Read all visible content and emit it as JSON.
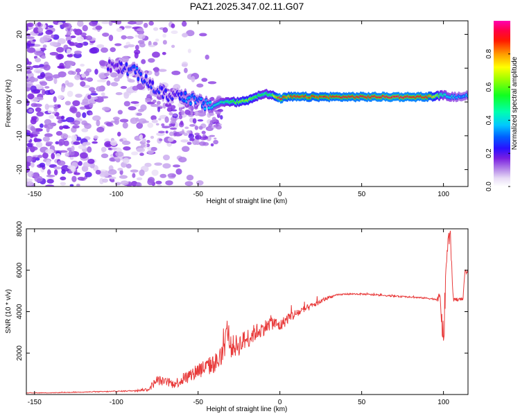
{
  "figure": {
    "title": "PAZ1.2025.347.02.11.G07"
  },
  "chart_data": [
    {
      "type": "heatmap",
      "name": "spectrogram",
      "title": "PAZ1.2025.347.02.11.G07",
      "xlabel": "Height of straight line (km)",
      "ylabel": "Frequency (Hz)",
      "xlim": [
        -155,
        115
      ],
      "ylim": [
        -25,
        24
      ],
      "x_ticks": [
        -150,
        -100,
        -50,
        0,
        50,
        100
      ],
      "x_tick_labels": [
        "-150",
        "-100",
        "-50",
        "0",
        "50",
        "100"
      ],
      "y_ticks": [
        -20,
        -10,
        0,
        10,
        20
      ],
      "y_tick_labels": [
        "-20",
        "-10",
        "0",
        "10",
        "20"
      ],
      "colorbar": {
        "label": "Normalized spectral amplitude",
        "range": [
          0,
          1
        ],
        "ticks": [
          0,
          0.2,
          0.4,
          0.6,
          0.8
        ],
        "tick_labels": [
          "0.0",
          "0.2",
          "0.4",
          "0.6",
          "0.8"
        ],
        "colormap": "white-lavender-purple-blue-cyan-green-yellow-orange-red-magenta"
      },
      "ridge": {
        "description": "dominant spectral ridge frequency vs height",
        "x": [
          -100,
          -90,
          -80,
          -75,
          -70,
          -65,
          -60,
          -55,
          -50,
          -45,
          -40,
          -35,
          -30,
          -25,
          -20,
          -15,
          -10,
          -5,
          0,
          5,
          10,
          20,
          30,
          40,
          50,
          60,
          70,
          80,
          90,
          100,
          105,
          110,
          115
        ],
        "y": [
          10.5,
          9.5,
          5.5,
          3.5,
          2.0,
          2.0,
          2.0,
          1.0,
          0.0,
          -1.0,
          -1.0,
          0.0,
          0.0,
          0.0,
          0.5,
          1.5,
          2.5,
          2.0,
          1.0,
          1.5,
          1.5,
          1.5,
          1.5,
          1.5,
          1.5,
          1.5,
          1.5,
          1.5,
          1.5,
          2.0,
          1.5,
          1.5,
          2.0
        ],
        "amplitude": [
          0.2,
          0.3,
          0.25,
          0.25,
          0.25,
          0.2,
          0.3,
          0.35,
          0.3,
          0.35,
          0.4,
          0.45,
          0.55,
          0.6,
          0.65,
          0.6,
          0.5,
          0.55,
          0.95,
          0.8,
          0.9,
          0.85,
          0.88,
          0.9,
          0.9,
          0.92,
          0.93,
          0.92,
          0.9,
          0.45,
          0.4,
          0.35,
          0.35
        ]
      }
    },
    {
      "type": "line",
      "name": "snr",
      "xlabel": "Height of straight line (km)",
      "ylabel": "SNR (10 * v/v)",
      "xlim": [
        -155,
        115
      ],
      "ylim": [
        0,
        8000
      ],
      "x_ticks": [
        -150,
        -100,
        -50,
        0,
        50,
        100
      ],
      "x_tick_labels": [
        "-150",
        "-100",
        "-50",
        "0",
        "50",
        "100"
      ],
      "y_ticks": [
        2000,
        4000,
        6000,
        8000
      ],
      "y_tick_labels": [
        "2000",
        "4000",
        "6000",
        "8000"
      ],
      "color": "#e83a3a",
      "series": [
        {
          "name": "SNR",
          "x": [
            -155,
            -140,
            -120,
            -100,
            -90,
            -80,
            -78,
            -75,
            -70,
            -65,
            -60,
            -55,
            -50,
            -45,
            -40,
            -35,
            -32,
            -30,
            -25,
            -20,
            -15,
            -10,
            -5,
            0,
            5,
            10,
            15,
            20,
            25,
            30,
            35,
            40,
            45,
            50,
            60,
            70,
            80,
            90,
            95,
            98,
            100,
            102,
            104,
            106,
            110,
            112,
            113,
            115
          ],
          "y": [
            80,
            80,
            120,
            150,
            180,
            250,
            450,
            700,
            600,
            500,
            700,
            900,
            1200,
            1300,
            1500,
            1800,
            3200,
            2300,
            2400,
            2700,
            3000,
            3200,
            3500,
            3300,
            3700,
            3900,
            4100,
            4300,
            4500,
            4700,
            4800,
            4850,
            4850,
            4850,
            4800,
            4750,
            4700,
            4650,
            4600,
            4700,
            2500,
            6800,
            7900,
            4600,
            4600,
            4600,
            5900,
            5900
          ],
          "noise_amplitude": [
            20,
            20,
            30,
            40,
            50,
            150,
            300,
            400,
            350,
            350,
            500,
            600,
            700,
            700,
            800,
            900,
            1000,
            900,
            900,
            800,
            700,
            600,
            600,
            500,
            450,
            400,
            300,
            250,
            200,
            120,
            80,
            60,
            60,
            60,
            60,
            60,
            60,
            60,
            80,
            400,
            1500,
            1200,
            600,
            200,
            100,
            100,
            200,
            200
          ]
        }
      ]
    }
  ]
}
